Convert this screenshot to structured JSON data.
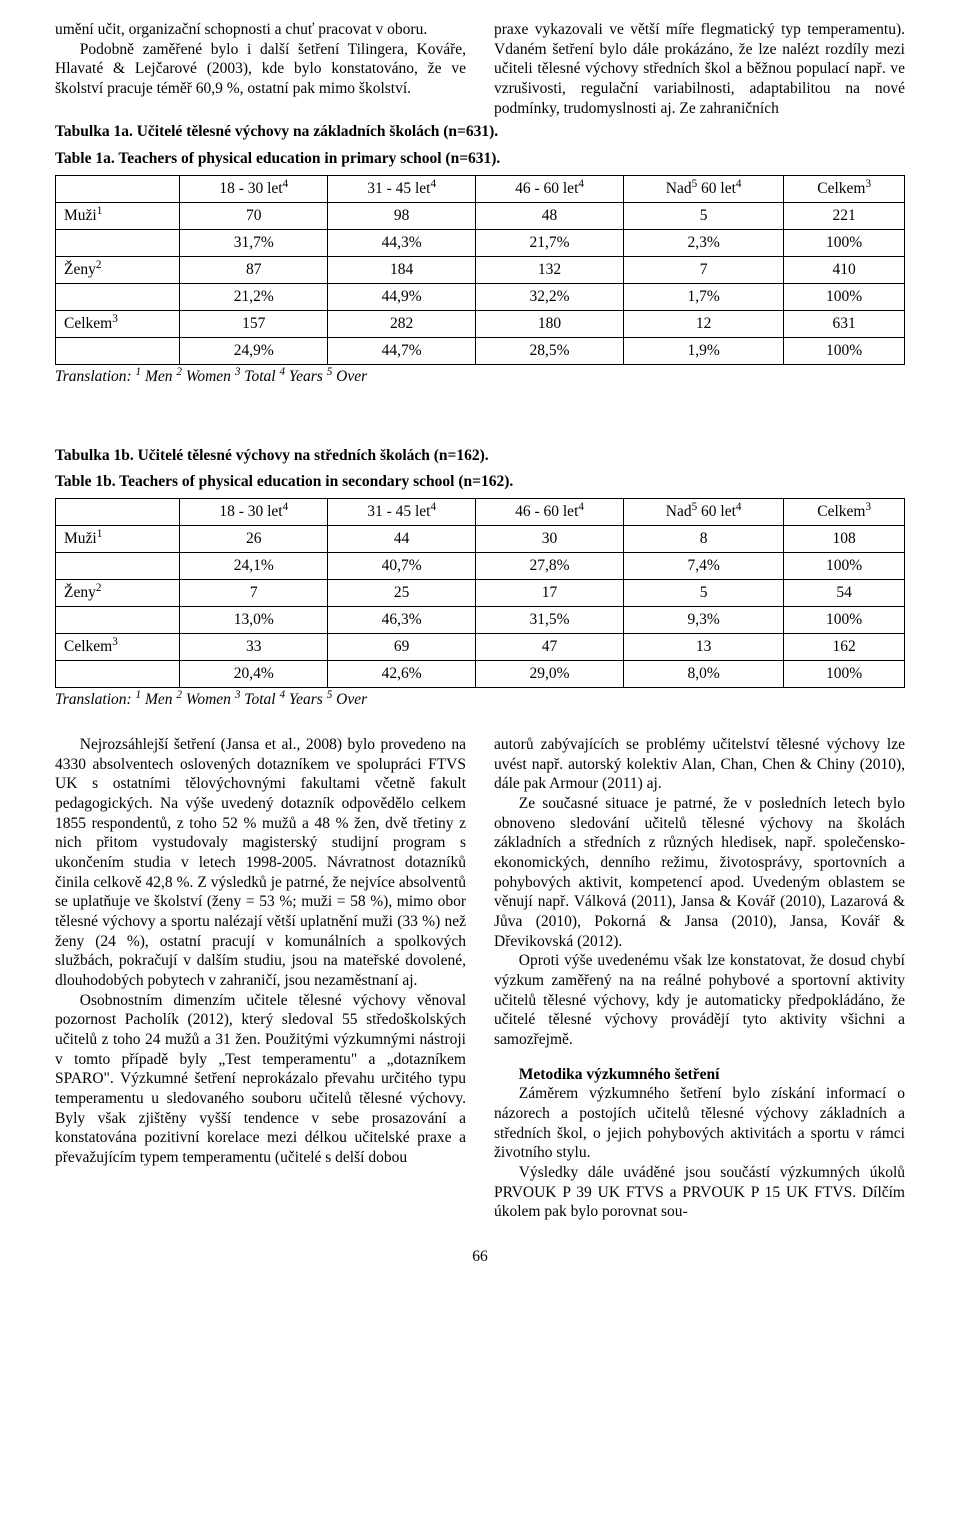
{
  "top": {
    "left": [
      "umění učit, organizační schopnosti a chuť pracovat v oboru.",
      "Podobně zaměřené bylo i další šetření Tilingera, Kováře, Hlavaté & Lejčarové (2003), kde bylo konstatováno, že ve školství pracuje téměř 60,9 %, ostatní pak mimo školství."
    ],
    "right": [
      "praxe vykazovali ve větší míře flegmatický typ temperamentu). Vdaném šetření bylo dále prokázáno, že lze nalézt rozdíly mezi učiteli tělesné výchovy středních škol a běžnou populací např. ve vzrušivosti, regulační variabilnosti, adaptabilitou na nové podmínky, trudomyslnosti aj. Ze zahraničních"
    ]
  },
  "table1a": {
    "caption_cz": "Tabulka 1a. Učitelé tělesné výchovy na základních školách (n=631).",
    "caption_en": "Table 1a. Teachers of physical education in primary school (n=631).",
    "columns": [
      {
        "label": "18 - 30 let",
        "sup": "4"
      },
      {
        "label": "31 - 45 let",
        "sup": "4"
      },
      {
        "label": "46 - 60 let",
        "sup": "4"
      },
      {
        "label": "Nad",
        "sup": "5",
        "suffix": " 60 let",
        "suffix_sup": "4"
      },
      {
        "label": "Celkem",
        "sup": "3"
      }
    ],
    "rows": [
      {
        "label": "Muži",
        "sup": "1",
        "vals": [
          "70",
          "98",
          "48",
          "5",
          "221"
        ]
      },
      {
        "label": "",
        "sup": "",
        "vals": [
          "31,7%",
          "44,3%",
          "21,7%",
          "2,3%",
          "100%"
        ]
      },
      {
        "label": "Ženy",
        "sup": "2",
        "vals": [
          "87",
          "184",
          "132",
          "7",
          "410"
        ]
      },
      {
        "label": "",
        "sup": "",
        "vals": [
          "21,2%",
          "44,9%",
          "32,2%",
          "1,7%",
          "100%"
        ]
      },
      {
        "label": "Celkem",
        "sup": "3",
        "vals": [
          "157",
          "282",
          "180",
          "12",
          "631"
        ]
      },
      {
        "label": "",
        "sup": "",
        "vals": [
          "24,9%",
          "44,7%",
          "28,5%",
          "1,9%",
          "100%"
        ]
      }
    ],
    "translation": "Translation: ¹ Men ² Women ³ Total ⁴ Years ⁵ Over"
  },
  "table1b": {
    "caption_cz": "Tabulka 1b. Učitelé tělesné výchovy na středních školách (n=162).",
    "caption_en": "Table 1b. Teachers of physical education in secondary school (n=162).",
    "columns": [
      {
        "label": "18 - 30 let",
        "sup": "4"
      },
      {
        "label": "31 - 45 let",
        "sup": "4"
      },
      {
        "label": "46 - 60 let",
        "sup": "4"
      },
      {
        "label": "Nad",
        "sup": "5",
        "suffix": " 60 let",
        "suffix_sup": "4"
      },
      {
        "label": "Celkem",
        "sup": "3"
      }
    ],
    "rows": [
      {
        "label": "Muži",
        "sup": "1",
        "vals": [
          "26",
          "44",
          "30",
          "8",
          "108"
        ]
      },
      {
        "label": "",
        "sup": "",
        "vals": [
          "24,1%",
          "40,7%",
          "27,8%",
          "7,4%",
          "100%"
        ]
      },
      {
        "label": "Ženy",
        "sup": "2",
        "vals": [
          "7",
          "25",
          "17",
          "5",
          "54"
        ]
      },
      {
        "label": "",
        "sup": "",
        "vals": [
          "13,0%",
          "46,3%",
          "31,5%",
          "9,3%",
          "100%"
        ]
      },
      {
        "label": "Celkem",
        "sup": "3",
        "vals": [
          "33",
          "69",
          "47",
          "13",
          "162"
        ]
      },
      {
        "label": "",
        "sup": "",
        "vals": [
          "20,4%",
          "42,6%",
          "29,0%",
          "8,0%",
          "100%"
        ]
      }
    ],
    "translation": "Translation: ¹ Men ² Women ³ Total ⁴ Years ⁵ Over"
  },
  "bottom": {
    "left": [
      "Nejrozsáhlejší šetření (Jansa et al., 2008) bylo provedeno na 4330 absolventech oslovených dotazníkem ve spolupráci FTVS UK s ostatními tělovýchovnými fakultami včetně fakult pedagogických. Na výše uvedený dotazník odpovědělo celkem 1855 respondentů, z toho 52 % mužů a 48 % žen, dvě třetiny z nich přitom vystudovaly magisterský studijní program s ukončením studia v letech 1998-2005. Návratnost dotazníků činila celkově 42,8 %. Z výsledků je patrné, že nejvíce absolventů se uplatňuje ve školství (ženy = 53 %; muži = 58 %), mimo obor tělesné výchovy a sportu nalézají větší uplatnění muži (33 %) než ženy (24 %), ostatní pracují v komunálních a spolkových službách, pokračují v dalším studiu, jsou na mateřské dovolené, dlouhodobých pobytech v zahraničí, jsou nezaměstnaní aj.",
      "Osobnostním dimenzím učitele tělesné výchovy věnoval pozornost Pacholík (2012), který sledoval 55 středoškolských učitelů z toho 24 mužů a 31 žen. Použitými výzkumnými nástroji v tomto případě byly „Test temperamentu\" a „dotazníkem SPARO\". Výzkumné šetření neprokázalo převahu určitého typu temperamentu u sledovaného souboru učitelů tělesné výchovy. Byly však zjištěny vyšší tendence v sebe prosazování a konstatována pozitivní korelace mezi délkou učitelské praxe a převažujícím typem temperamentu (učitelé s delší dobou"
    ],
    "right": [
      "autorů zabývajících se problémy učitelství tělesné výchovy lze uvést např. autorský kolektiv Alan, Chan, Chen & Chiny (2010), dále pak Armour (2011) aj.",
      "Ze současné situace je patrné, že v posledních letech bylo obnoveno sledování učitelů tělesné výchovy na školách základních a středních z různých hledisek, např. společensko-ekonomických, denního režimu, životosprávy, sportovních a pohybových aktivit, kompetencí apod. Uvedeným oblastem se věnují např. Válková (2011), Jansa & Kovář (2010), Lazarová & Jůva (2010), Pokorná & Jansa (2010), Jansa, Kovář & Dřevikovská (2012).",
      "Oproti výše uvedenému však lze konstatovat, že dosud chybí výzkum zaměřený na na reálné pohybové a sportovní aktivity učitelů tělesné výchovy, kdy je automaticky předpokládáno, že učitelé tělesné výchovy provádějí tyto aktivity všichni a samozřejmě.",
      "",
      "Metodika výzkumného šetření",
      "Záměrem výzkumného šetření bylo získání informací o názorech a postojích učitelů tělesné výchovy základních a středních škol, o jejich pohybových aktivitách a sportu v rámci životního stylu.",
      "Výsledky dále uváděné jsou součástí výzkumných úkolů PRVOUK P 39 UK FTVS a PRVOUK P 15 UK FTVS. Dílčím úkolem pak bylo porovnat sou-"
    ]
  },
  "page_number": "66"
}
